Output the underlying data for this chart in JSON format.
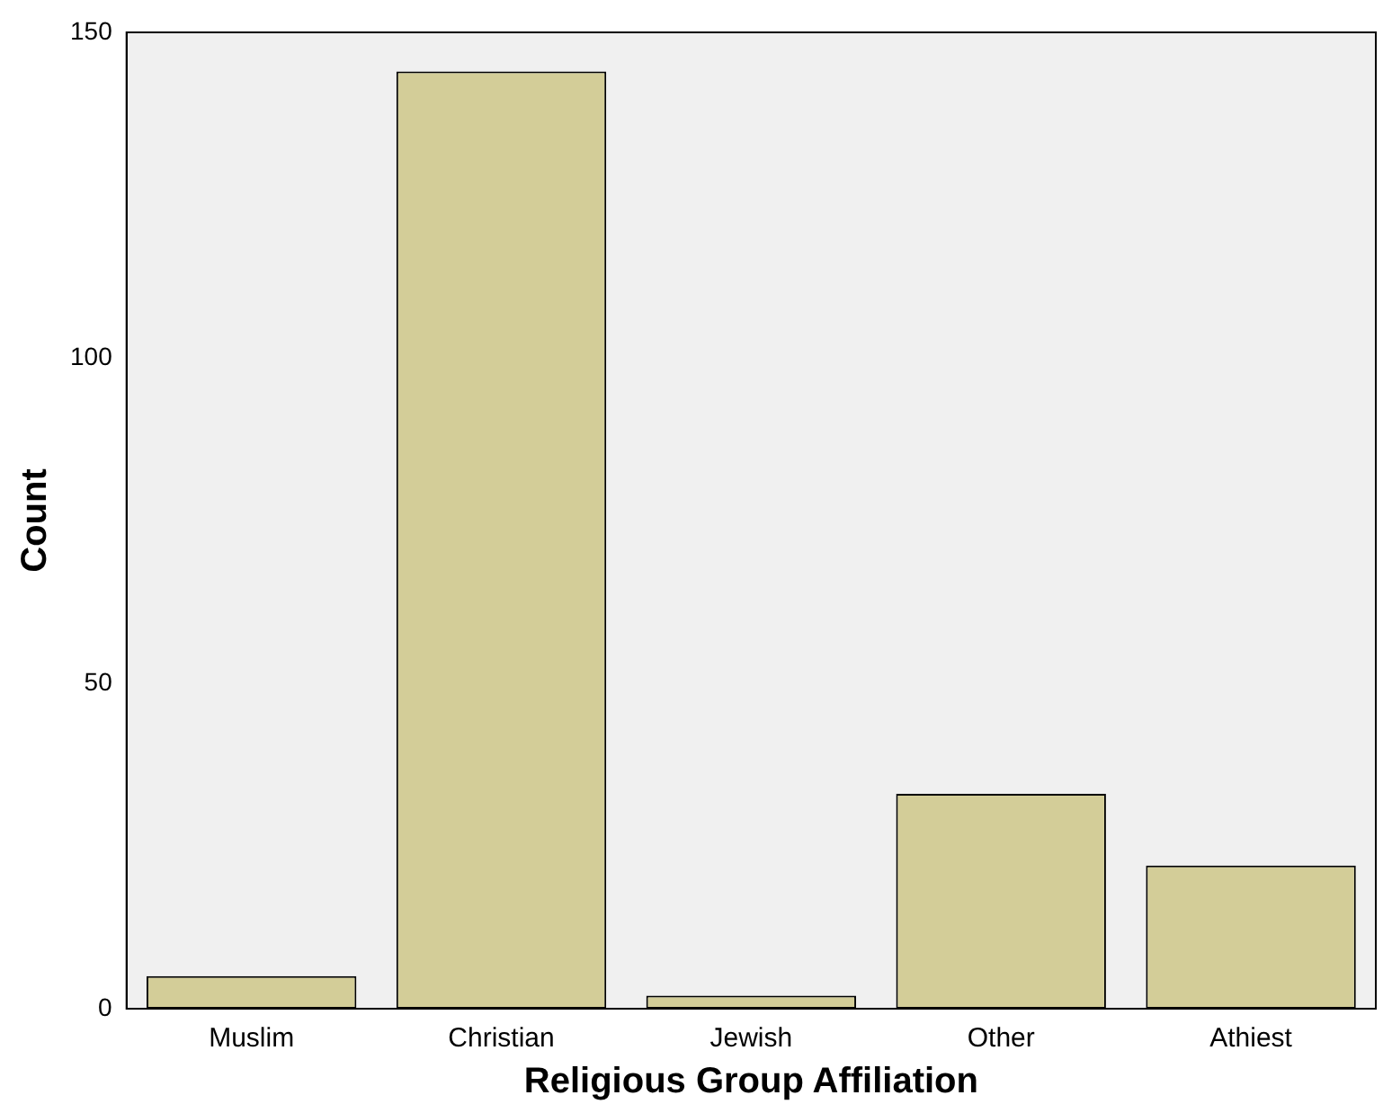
{
  "chart_data": {
    "type": "bar",
    "xlabel": "Religious Group Affiliation",
    "ylabel": "Count",
    "categories": [
      "Muslim",
      "Christian",
      "Jewish",
      "Other",
      "Athiest"
    ],
    "values": [
      5,
      144,
      2,
      33,
      22
    ],
    "color": "#d3cd98",
    "ylim": [
      0,
      150
    ],
    "yticks": [
      0,
      50,
      100,
      150
    ],
    "grid": false,
    "legend": false
  }
}
